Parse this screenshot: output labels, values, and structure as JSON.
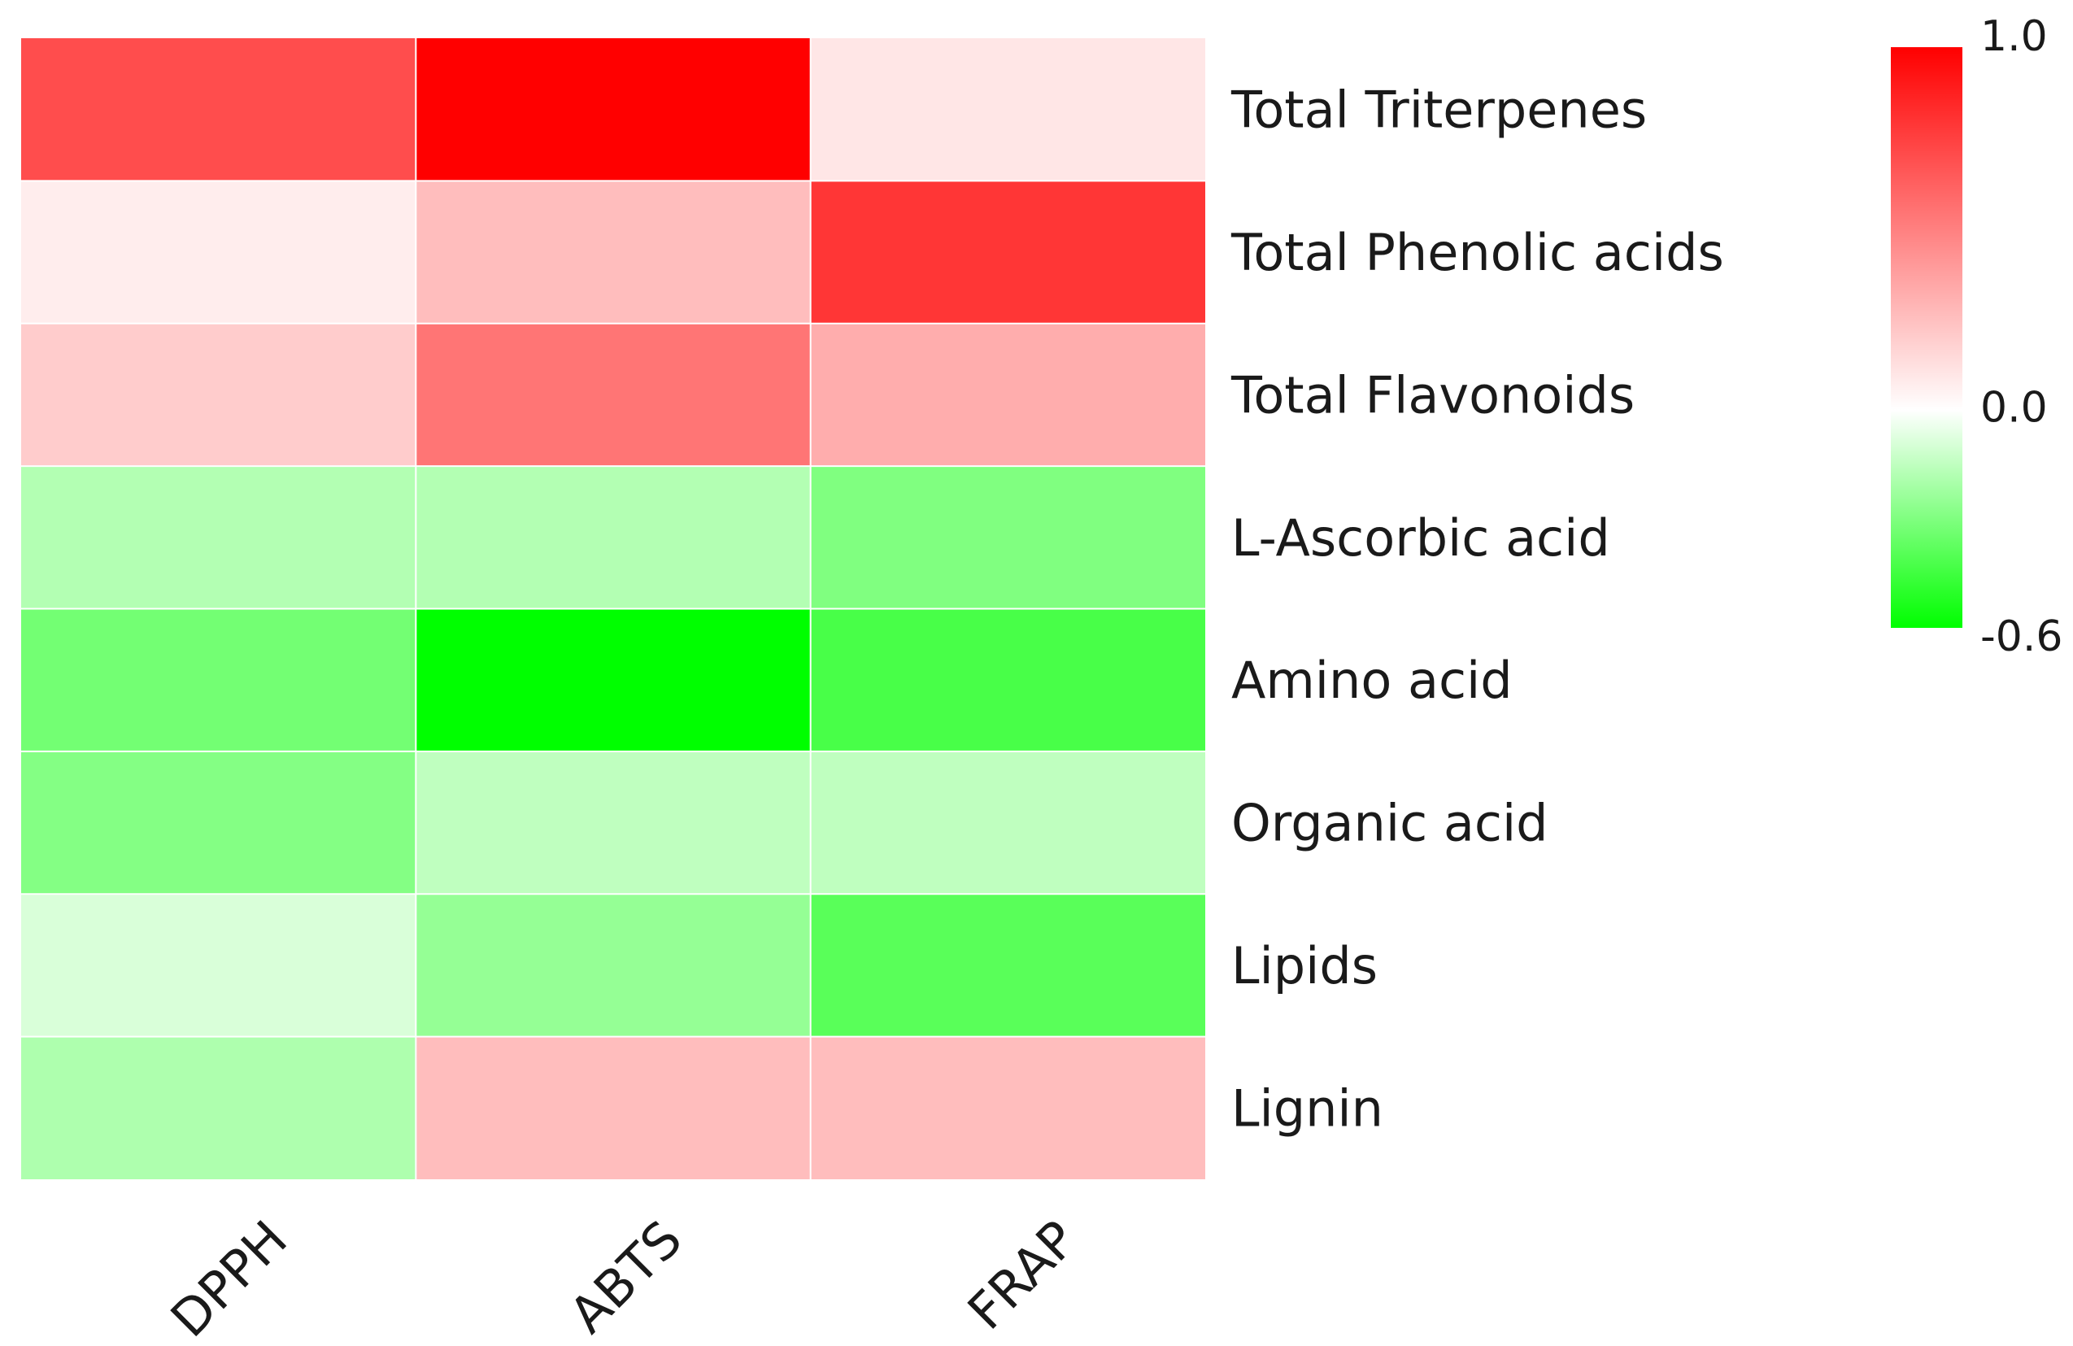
{
  "chart_data": {
    "type": "heatmap",
    "title": "",
    "columns": [
      "DPPH",
      "ABTS",
      "FRAP"
    ],
    "rows": [
      "Total Triterpenes",
      "Total Phenolic acids",
      "Total Flavonoids",
      "L-Ascorbic acid",
      "Amino acid",
      "Organic acid",
      "Lipids",
      "Lignin"
    ],
    "values": [
      [
        0.7,
        1.0,
        0.1
      ],
      [
        0.07,
        0.26,
        0.79
      ],
      [
        0.2,
        0.54,
        0.32
      ],
      [
        -0.18,
        -0.18,
        -0.3
      ],
      [
        -0.33,
        -0.6,
        -0.43
      ],
      [
        -0.29,
        -0.15,
        -0.15
      ],
      [
        -0.09,
        -0.25,
        -0.39
      ],
      [
        -0.19,
        0.26,
        0.26
      ]
    ],
    "color_scale": {
      "min": -0.6,
      "mid": 0.0,
      "max": 1.0,
      "low_color": "#00ff00",
      "mid_color": "#ffffff",
      "high_color": "#ff0000",
      "tick_labels": [
        "1.0",
        "0.0",
        "-0.6"
      ],
      "tick_values": [
        1.0,
        0.0,
        -0.6
      ]
    },
    "legend_placement": "top-right",
    "grid": true,
    "grid_color": "#ffffff"
  }
}
